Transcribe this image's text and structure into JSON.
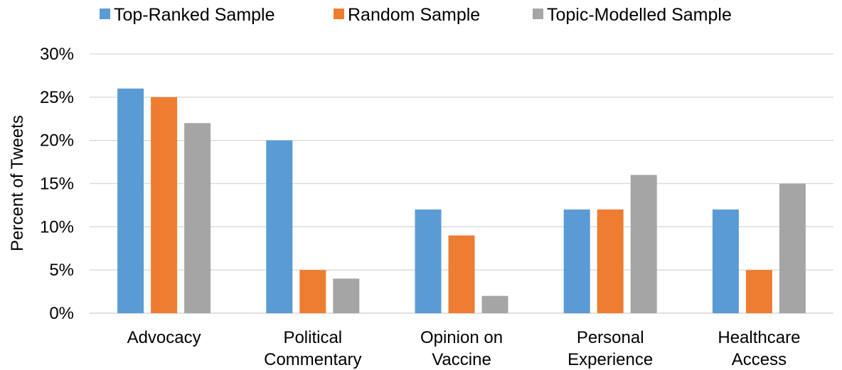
{
  "chart_data": {
    "type": "bar",
    "categories": [
      [
        "Advocacy"
      ],
      [
        "Political",
        "Commentary"
      ],
      [
        "Opinion on",
        "Vaccine"
      ],
      [
        "Personal",
        "Experience"
      ],
      [
        "Healthcare",
        "Access"
      ]
    ],
    "series": [
      {
        "name": "Top-Ranked Sample",
        "color": "#5B9BD5",
        "values": [
          26,
          20,
          12,
          12,
          12
        ]
      },
      {
        "name": "Random Sample",
        "color": "#ED7D31",
        "values": [
          25,
          5,
          9,
          12,
          5
        ]
      },
      {
        "name": "Topic-Modelled Sample",
        "color": "#A5A5A5",
        "values": [
          22,
          4,
          2,
          16,
          15
        ]
      }
    ],
    "title": "",
    "xlabel": "",
    "ylabel": "Percent of Tweets",
    "ylim": [
      0,
      30
    ],
    "yticks": [
      "0%",
      "5%",
      "10%",
      "15%",
      "20%",
      "25%",
      "30%"
    ],
    "ytick_values": [
      0,
      5,
      10,
      15,
      20,
      25,
      30
    ],
    "grid": true,
    "legend_position": "top",
    "gridline_color": "#D9D9D9"
  }
}
